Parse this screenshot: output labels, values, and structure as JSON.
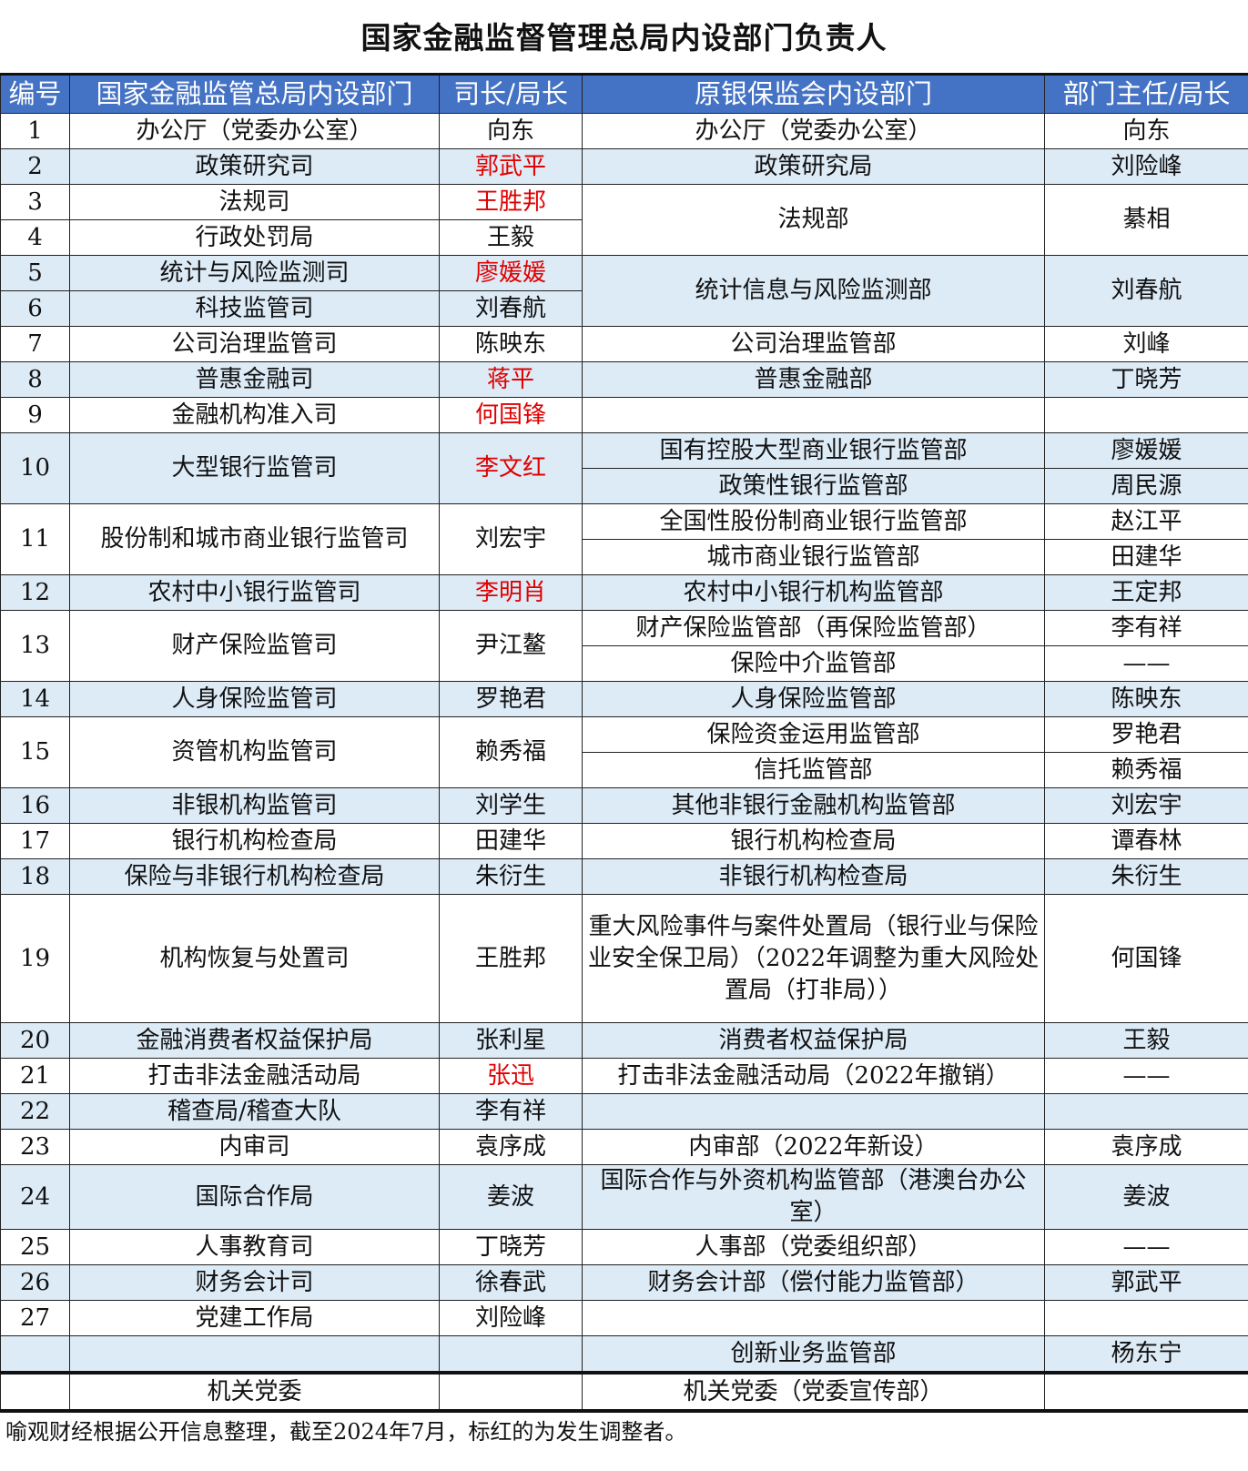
{
  "title": "国家金融监督管理总局内设部门负责人",
  "headers": [
    "编号",
    "国家金融监管总局内设部门",
    "司长/局长",
    "原银保监会内设部门",
    "部门主任/局长"
  ],
  "colors": {
    "header_bg": "#4472c4",
    "shade_bg": "#ddebf7",
    "red_text": "#e00000"
  },
  "groups": [
    {
      "new": [
        {
          "no": "1",
          "dept": "办公厅（党委办公室）",
          "head": "向东",
          "changed": false
        }
      ],
      "old": [
        {
          "dept": "办公厅（党委办公室）",
          "head": "向东"
        }
      ]
    },
    {
      "new": [
        {
          "no": "2",
          "dept": "政策研究司",
          "head": "郭武平",
          "changed": true
        }
      ],
      "old": [
        {
          "dept": "政策研究局",
          "head": "刘险峰"
        }
      ]
    },
    {
      "new": [
        {
          "no": "3",
          "dept": "法规司",
          "head": "王胜邦",
          "changed": true
        },
        {
          "no": "4",
          "dept": "行政处罚局",
          "head": "王毅",
          "changed": false
        }
      ],
      "old": [
        {
          "dept": "法规部",
          "head": "綦相"
        }
      ]
    },
    {
      "new": [
        {
          "no": "5",
          "dept": "统计与风险监测司",
          "head": "廖媛媛",
          "changed": true
        },
        {
          "no": "6",
          "dept": "科技监管司",
          "head": "刘春航",
          "changed": false
        }
      ],
      "old": [
        {
          "dept": "统计信息与风险监测部",
          "head": "刘春航"
        }
      ]
    },
    {
      "new": [
        {
          "no": "7",
          "dept": "公司治理监管司",
          "head": "陈映东",
          "changed": false
        }
      ],
      "old": [
        {
          "dept": "公司治理监管部",
          "head": "刘峰"
        }
      ]
    },
    {
      "new": [
        {
          "no": "8",
          "dept": "普惠金融司",
          "head": "蒋平",
          "changed": true
        }
      ],
      "old": [
        {
          "dept": "普惠金融部",
          "head": "丁晓芳"
        }
      ]
    },
    {
      "new": [
        {
          "no": "9",
          "dept": "金融机构准入司",
          "head": "何国锋",
          "changed": true
        }
      ],
      "old": [
        {
          "dept": "",
          "head": ""
        }
      ]
    },
    {
      "new": [
        {
          "no": "10",
          "dept": "大型银行监管司",
          "head": "李文红",
          "changed": true
        }
      ],
      "old": [
        {
          "dept": "国有控股大型商业银行监管部",
          "head": "廖媛媛"
        },
        {
          "dept": "政策性银行监管部",
          "head": "周民源"
        }
      ]
    },
    {
      "new": [
        {
          "no": "11",
          "dept": "股份制和城市商业银行监管司",
          "head": "刘宏宇",
          "changed": false
        }
      ],
      "old": [
        {
          "dept": "全国性股份制商业银行监管部",
          "head": "赵江平"
        },
        {
          "dept": "城市商业银行监管部",
          "head": "田建华"
        }
      ]
    },
    {
      "new": [
        {
          "no": "12",
          "dept": "农村中小银行监管司",
          "head": "李明肖",
          "changed": true
        }
      ],
      "old": [
        {
          "dept": "农村中小银行机构监管部",
          "head": "王定邦"
        }
      ]
    },
    {
      "new": [
        {
          "no": "13",
          "dept": "财产保险监管司",
          "head": "尹江鳌",
          "changed": false
        }
      ],
      "old": [
        {
          "dept": "财产保险监管部（再保险监管部）",
          "head": "李有祥"
        },
        {
          "dept": "保险中介监管部",
          "head": "——"
        }
      ]
    },
    {
      "new": [
        {
          "no": "14",
          "dept": "人身保险监管司",
          "head": "罗艳君",
          "changed": false
        }
      ],
      "old": [
        {
          "dept": "人身保险监管部",
          "head": "陈映东"
        }
      ]
    },
    {
      "new": [
        {
          "no": "15",
          "dept": "资管机构监管司",
          "head": "赖秀福",
          "changed": false
        }
      ],
      "old": [
        {
          "dept": "保险资金运用监管部",
          "head": "罗艳君"
        },
        {
          "dept": "信托监管部",
          "head": "赖秀福"
        }
      ]
    },
    {
      "new": [
        {
          "no": "16",
          "dept": "非银机构监管司",
          "head": "刘学生",
          "changed": false
        }
      ],
      "old": [
        {
          "dept": "其他非银行金融机构监管部",
          "head": "刘宏宇"
        }
      ]
    },
    {
      "new": [
        {
          "no": "17",
          "dept": "银行机构检查局",
          "head": "田建华",
          "changed": false
        }
      ],
      "old": [
        {
          "dept": "银行机构检查局",
          "head": "谭春林"
        }
      ]
    },
    {
      "new": [
        {
          "no": "18",
          "dept": "保险与非银行机构检查局",
          "head": "朱衍生",
          "changed": false
        }
      ],
      "old": [
        {
          "dept": "非银行机构检查局",
          "head": "朱衍生"
        }
      ]
    },
    {
      "new": [
        {
          "no": "19",
          "dept": "机构恢复与处置司",
          "head": "王胜邦",
          "changed": false
        }
      ],
      "old": [
        {
          "dept": "重大风险事件与案件处置局（银行业与保险业安全保卫局）（2022年调整为重大风险处置局（打非局））",
          "head": "何国锋"
        }
      ]
    },
    {
      "new": [
        {
          "no": "20",
          "dept": "金融消费者权益保护局",
          "head": "张利星",
          "changed": false
        }
      ],
      "old": [
        {
          "dept": "消费者权益保护局",
          "head": "王毅"
        }
      ]
    },
    {
      "new": [
        {
          "no": "21",
          "dept": "打击非法金融活动局",
          "head": "张迅",
          "changed": true
        }
      ],
      "old": [
        {
          "dept": "打击非法金融活动局（2022年撤销）",
          "head": "——"
        }
      ]
    },
    {
      "new": [
        {
          "no": "22",
          "dept": "稽查局/稽查大队",
          "head": "李有祥",
          "changed": false
        }
      ],
      "old": [
        {
          "dept": "",
          "head": ""
        }
      ]
    },
    {
      "new": [
        {
          "no": "23",
          "dept": "内审司",
          "head": "袁序成",
          "changed": false
        }
      ],
      "old": [
        {
          "dept": "内审部（2022年新设）",
          "head": "袁序成"
        }
      ]
    },
    {
      "new": [
        {
          "no": "24",
          "dept": "国际合作局",
          "head": "姜波",
          "changed": false
        }
      ],
      "old": [
        {
          "dept": "国际合作与外资机构监管部（港澳台办公室）",
          "head": "姜波"
        }
      ]
    },
    {
      "new": [
        {
          "no": "25",
          "dept": "人事教育司",
          "head": "丁晓芳",
          "changed": false
        }
      ],
      "old": [
        {
          "dept": "人事部（党委组织部）",
          "head": "——"
        }
      ]
    },
    {
      "new": [
        {
          "no": "26",
          "dept": "财务会计司",
          "head": "徐春武",
          "changed": false
        }
      ],
      "old": [
        {
          "dept": "财务会计部（偿付能力监管部）",
          "head": "郭武平"
        }
      ]
    },
    {
      "new": [
        {
          "no": "27",
          "dept": "党建工作局",
          "head": "刘险峰",
          "changed": false
        }
      ],
      "old": [
        {
          "dept": "",
          "head": ""
        }
      ]
    },
    {
      "new": [
        {
          "no": "",
          "dept": "",
          "head": "",
          "changed": false
        }
      ],
      "old": [
        {
          "dept": "创新业务监管部",
          "head": "杨东宁"
        }
      ]
    },
    {
      "new": [
        {
          "no": "",
          "dept": "机关党委",
          "head": "",
          "changed": false
        }
      ],
      "old": [
        {
          "dept": "机关党委（党委宣传部）",
          "head": ""
        }
      ]
    }
  ],
  "footer": "喻观财经根据公开信息整理，截至2024年7月，标红的为发生调整者。"
}
